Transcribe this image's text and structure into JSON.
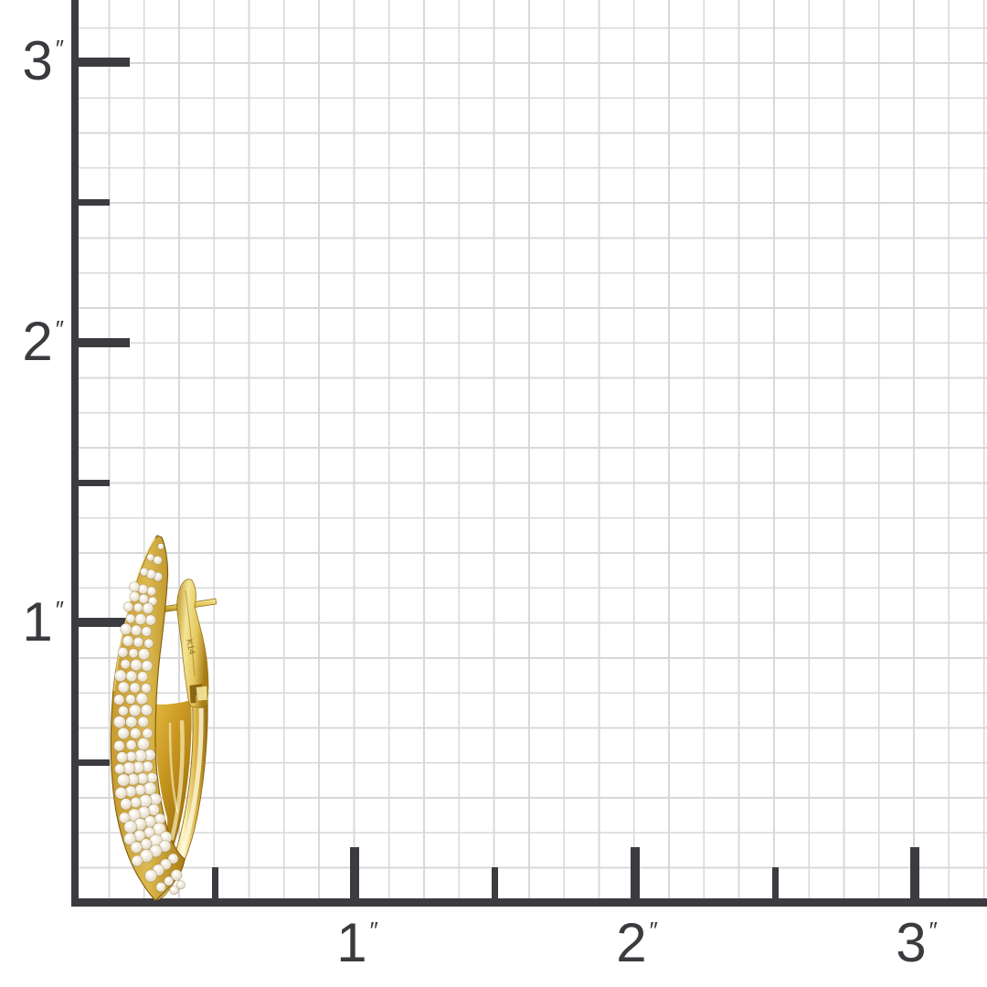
{
  "page": {
    "background_color": "#ffffff",
    "description": "Jewelry size-reference photo: diamond pave oval hoop earring on an inch measurement grid"
  },
  "ruler": {
    "unit_suffix": "″",
    "y_axis_labels": [
      "3",
      "2",
      "1"
    ],
    "x_axis_labels": [
      "1",
      "2",
      "3"
    ],
    "axis_color": "#3b3b40",
    "grid_color": "#d8d8dc",
    "label_color": "#3a3a3f",
    "minor_cells_per_inch": 8
  },
  "product": {
    "name": "yellow gold pave diamond oval hoop earring with lever back",
    "metal_stamp": "K14",
    "gold_light_color": "#fbf3bb",
    "gold_mid_color": "#e2c155",
    "gold_deep_color": "#a8790f",
    "diamond_color": "#efe8da"
  }
}
